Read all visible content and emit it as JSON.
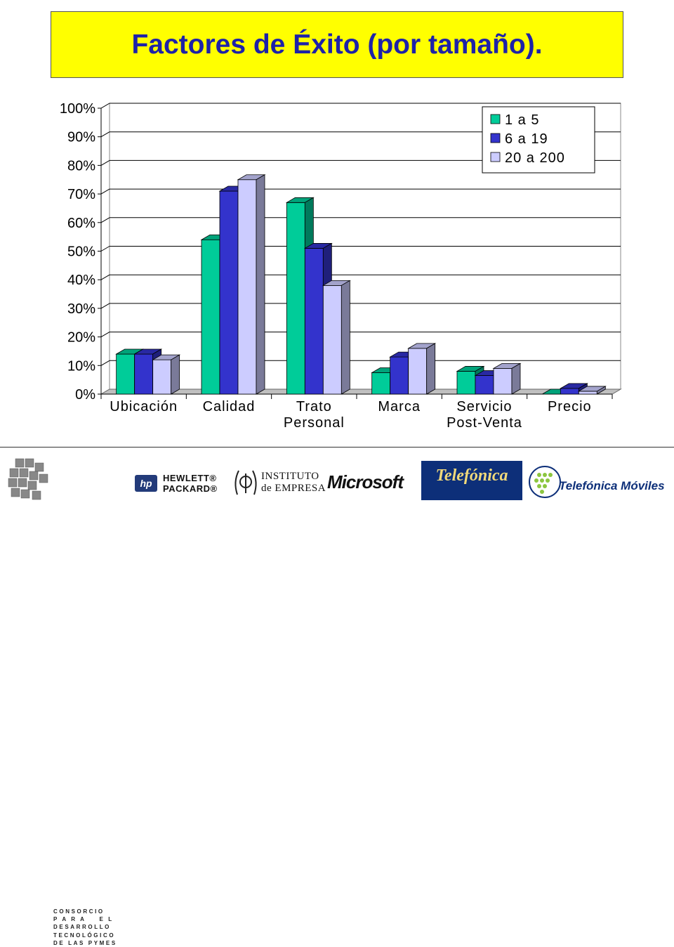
{
  "title": "Factores de Éxito (por tamaño).",
  "chart_data": {
    "type": "bar",
    "title": "",
    "xlabel": "",
    "ylabel": "",
    "ylim": [
      0,
      100
    ],
    "y_ticks": [
      "0%",
      "10%",
      "20%",
      "30%",
      "40%",
      "50%",
      "60%",
      "70%",
      "80%",
      "90%",
      "100%"
    ],
    "categories": [
      [
        "Ubicación"
      ],
      [
        "Calidad"
      ],
      [
        "Trato",
        "Personal"
      ],
      [
        "Marca"
      ],
      [
        "Servicio",
        "Post-Venta"
      ],
      [
        "Precio"
      ]
    ],
    "series": [
      {
        "name": "1 a 5",
        "values": [
          14,
          54,
          67,
          7.5,
          8,
          0
        ],
        "color": "#00cc99"
      },
      {
        "name": "6 a 19",
        "values": [
          14,
          71,
          51,
          13,
          6.5,
          2
        ],
        "color": "#3333cc"
      },
      {
        "name": "20 a 200",
        "values": [
          12,
          75,
          38,
          16,
          9,
          1
        ],
        "color": "#ccccff"
      }
    ],
    "grid": true,
    "legend": "top-right",
    "style": "3d-clustered"
  },
  "footer": {
    "consorcio": [
      "CONSORCIO",
      "P A R A    E L",
      "DESARROLLO",
      "TECNOLÓGICO",
      "DE LAS PYMES"
    ],
    "hp": {
      "mark": "hp",
      "lines": [
        "HEWLETT®",
        "PACKARD®"
      ]
    },
    "instituto": {
      "lines": [
        "INSTITUTO",
        "de EMPRESA"
      ]
    },
    "microsoft": "Microsoft",
    "telefonica": "Telefónica",
    "telefonica_moviles": "Telefónica Móviles"
  }
}
